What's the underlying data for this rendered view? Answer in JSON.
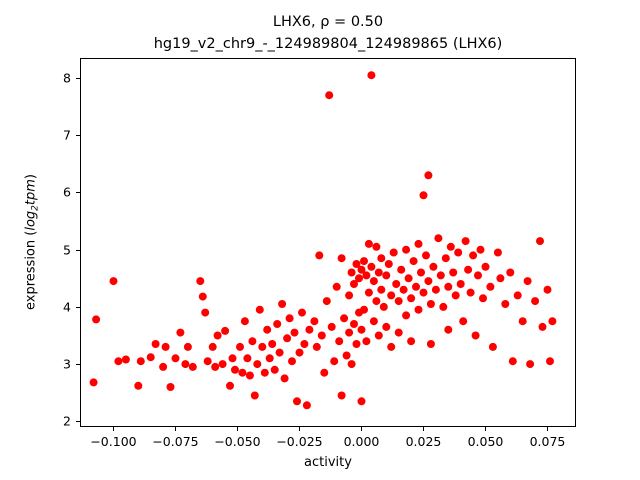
{
  "figure": {
    "title_line1": "LHX6, ρ = 0.50",
    "title_line2": "hg19_v2_chr9_-_124989804_124989865 (LHX6)",
    "xlabel": "activity",
    "ylabel_prefix": "expression (",
    "ylabel_log": "log",
    "ylabel_sub": "2",
    "ylabel_tpm": "tpm",
    "ylabel_suffix": ")"
  },
  "chart_data": {
    "type": "scatter",
    "title": "LHX6, ρ = 0.50\nhg19_v2_chr9_-_124989804_124989865 (LHX6)",
    "rho": 0.5,
    "xlabel": "activity",
    "ylabel": "expression (log2 tpm)",
    "xlim": [
      -0.1135,
      0.0865
    ],
    "ylim": [
      1.9,
      8.35
    ],
    "grid": false,
    "legend": "none",
    "marker_color": "#ff0000",
    "marker_radius": 4,
    "xticks": [
      -0.1,
      -0.075,
      -0.05,
      -0.025,
      0.0,
      0.025,
      0.05,
      0.075
    ],
    "xtick_labels": [
      "−0.100",
      "−0.075",
      "−0.050",
      "−0.025",
      "0.000",
      "0.025",
      "0.050",
      "0.075"
    ],
    "yticks": [
      2,
      3,
      4,
      5,
      6,
      7,
      8
    ],
    "ytick_labels": [
      "2",
      "3",
      "4",
      "5",
      "6",
      "7",
      "8"
    ],
    "points": [
      [
        -0.108,
        2.68
      ],
      [
        -0.107,
        3.78
      ],
      [
        -0.1,
        4.45
      ],
      [
        -0.098,
        3.05
      ],
      [
        -0.095,
        3.08
      ],
      [
        -0.09,
        2.62
      ],
      [
        -0.089,
        3.05
      ],
      [
        -0.085,
        3.12
      ],
      [
        -0.083,
        3.35
      ],
      [
        -0.08,
        2.95
      ],
      [
        -0.079,
        3.3
      ],
      [
        -0.077,
        2.6
      ],
      [
        -0.075,
        3.1
      ],
      [
        -0.073,
        3.55
      ],
      [
        -0.071,
        3.0
      ],
      [
        -0.07,
        3.3
      ],
      [
        -0.068,
        2.95
      ],
      [
        -0.065,
        4.45
      ],
      [
        -0.064,
        4.18
      ],
      [
        -0.063,
        3.9
      ],
      [
        -0.062,
        3.05
      ],
      [
        -0.06,
        3.3
      ],
      [
        -0.059,
        2.95
      ],
      [
        -0.058,
        3.5
      ],
      [
        -0.056,
        3.0
      ],
      [
        -0.055,
        3.58
      ],
      [
        -0.053,
        2.62
      ],
      [
        -0.052,
        3.1
      ],
      [
        -0.051,
        2.9
      ],
      [
        -0.049,
        3.3
      ],
      [
        -0.048,
        2.85
      ],
      [
        -0.047,
        3.75
      ],
      [
        -0.046,
        3.1
      ],
      [
        -0.045,
        2.8
      ],
      [
        -0.044,
        3.4
      ],
      [
        -0.043,
        2.45
      ],
      [
        -0.042,
        3.0
      ],
      [
        -0.041,
        3.95
      ],
      [
        -0.04,
        3.3
      ],
      [
        -0.039,
        2.85
      ],
      [
        -0.038,
        3.6
      ],
      [
        -0.037,
        3.1
      ],
      [
        -0.036,
        3.35
      ],
      [
        -0.035,
        2.9
      ],
      [
        -0.034,
        3.7
      ],
      [
        -0.033,
        3.2
      ],
      [
        -0.032,
        4.05
      ],
      [
        -0.031,
        2.75
      ],
      [
        -0.03,
        3.45
      ],
      [
        -0.029,
        3.8
      ],
      [
        -0.028,
        3.05
      ],
      [
        -0.027,
        3.55
      ],
      [
        -0.026,
        2.35
      ],
      [
        -0.025,
        3.2
      ],
      [
        -0.024,
        3.9
      ],
      [
        -0.023,
        3.35
      ],
      [
        -0.022,
        2.28
      ],
      [
        -0.021,
        3.6
      ],
      [
        -0.019,
        3.75
      ],
      [
        -0.018,
        3.3
      ],
      [
        -0.017,
        4.9
      ],
      [
        -0.016,
        3.5
      ],
      [
        -0.015,
        2.85
      ],
      [
        -0.014,
        4.1
      ],
      [
        -0.013,
        7.7
      ],
      [
        -0.012,
        3.65
      ],
      [
        -0.011,
        3.05
      ],
      [
        -0.01,
        4.35
      ],
      [
        -0.009,
        3.4
      ],
      [
        -0.008,
        2.45
      ],
      [
        -0.008,
        4.85
      ],
      [
        -0.007,
        3.8
      ],
      [
        -0.006,
        3.15
      ],
      [
        -0.005,
        4.2
      ],
      [
        -0.005,
        3.55
      ],
      [
        -0.004,
        4.6
      ],
      [
        -0.004,
        3.0
      ],
      [
        -0.003,
        4.4
      ],
      [
        -0.003,
        3.7
      ],
      [
        -0.002,
        4.75
      ],
      [
        -0.002,
        3.35
      ],
      [
        -0.001,
        4.5
      ],
      [
        -0.001,
        3.9
      ],
      [
        0.0,
        4.65
      ],
      [
        0.0,
        3.6
      ],
      [
        0.0,
        2.35
      ],
      [
        0.001,
        4.8
      ],
      [
        0.001,
        3.95
      ],
      [
        0.002,
        4.55
      ],
      [
        0.002,
        3.4
      ],
      [
        0.003,
        5.1
      ],
      [
        0.003,
        4.25
      ],
      [
        0.004,
        8.05
      ],
      [
        0.004,
        4.7
      ],
      [
        0.005,
        4.45
      ],
      [
        0.005,
        3.75
      ],
      [
        0.006,
        5.05
      ],
      [
        0.006,
        4.1
      ],
      [
        0.007,
        4.6
      ],
      [
        0.007,
        3.5
      ],
      [
        0.008,
        4.85
      ],
      [
        0.008,
        4.3
      ],
      [
        0.009,
        4.0
      ],
      [
        0.01,
        4.55
      ],
      [
        0.01,
        3.65
      ],
      [
        0.011,
        4.75
      ],
      [
        0.012,
        4.2
      ],
      [
        0.012,
        3.3
      ],
      [
        0.013,
        4.95
      ],
      [
        0.014,
        4.4
      ],
      [
        0.015,
        4.1
      ],
      [
        0.015,
        3.55
      ],
      [
        0.016,
        4.65
      ],
      [
        0.017,
        4.3
      ],
      [
        0.018,
        5.0
      ],
      [
        0.018,
        3.85
      ],
      [
        0.019,
        4.5
      ],
      [
        0.02,
        4.15
      ],
      [
        0.02,
        3.4
      ],
      [
        0.021,
        4.8
      ],
      [
        0.022,
        4.35
      ],
      [
        0.023,
        5.1
      ],
      [
        0.023,
        3.95
      ],
      [
        0.024,
        4.6
      ],
      [
        0.025,
        5.95
      ],
      [
        0.025,
        4.25
      ],
      [
        0.026,
        4.9
      ],
      [
        0.027,
        6.3
      ],
      [
        0.027,
        4.45
      ],
      [
        0.028,
        4.05
      ],
      [
        0.028,
        3.35
      ],
      [
        0.029,
        4.7
      ],
      [
        0.03,
        4.3
      ],
      [
        0.031,
        5.2
      ],
      [
        0.032,
        4.55
      ],
      [
        0.033,
        4.0
      ],
      [
        0.034,
        4.85
      ],
      [
        0.035,
        4.35
      ],
      [
        0.035,
        3.6
      ],
      [
        0.036,
        5.05
      ],
      [
        0.037,
        4.6
      ],
      [
        0.038,
        4.2
      ],
      [
        0.039,
        4.95
      ],
      [
        0.04,
        4.4
      ],
      [
        0.041,
        3.75
      ],
      [
        0.042,
        5.15
      ],
      [
        0.043,
        4.65
      ],
      [
        0.044,
        4.25
      ],
      [
        0.045,
        4.9
      ],
      [
        0.046,
        3.5
      ],
      [
        0.047,
        4.55
      ],
      [
        0.048,
        5.0
      ],
      [
        0.049,
        4.15
      ],
      [
        0.05,
        4.7
      ],
      [
        0.052,
        4.35
      ],
      [
        0.053,
        3.3
      ],
      [
        0.055,
        4.95
      ],
      [
        0.056,
        4.5
      ],
      [
        0.058,
        4.05
      ],
      [
        0.06,
        4.6
      ],
      [
        0.061,
        3.05
      ],
      [
        0.063,
        4.2
      ],
      [
        0.065,
        3.75
      ],
      [
        0.067,
        4.45
      ],
      [
        0.068,
        3.0
      ],
      [
        0.07,
        4.1
      ],
      [
        0.072,
        5.15
      ],
      [
        0.073,
        3.65
      ],
      [
        0.075,
        4.3
      ],
      [
        0.076,
        3.05
      ],
      [
        0.077,
        3.75
      ]
    ]
  }
}
